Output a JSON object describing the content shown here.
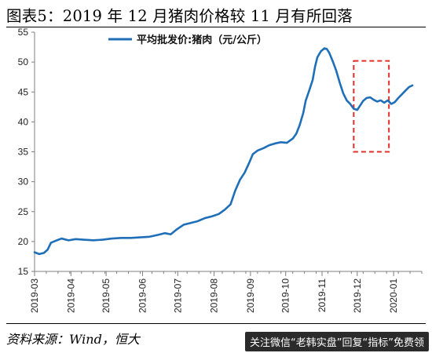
{
  "title": "图表5：2019 年 12 月猪肉价格较 11 月有所回落",
  "source": "资料来源：Wind，恒大",
  "watermark": "关注微信“老韩实盘”回复“指标”免费领",
  "colors": {
    "line": "#1f6fb8",
    "highlight": "#e0302a",
    "axis": "#7f7f7f"
  },
  "chart_data": {
    "type": "line",
    "title": "",
    "xlabel": "",
    "ylabel": "",
    "ylim": [
      15,
      55
    ],
    "yticks": [
      15,
      20,
      25,
      30,
      35,
      40,
      45,
      50,
      55
    ],
    "xlim": [
      "2019-03-01",
      "2020-01-25"
    ],
    "xticks": [
      "2019-03",
      "2019-04",
      "2019-05",
      "2019-06",
      "2019-07",
      "2019-08",
      "2019-09",
      "2019-10",
      "2019-11",
      "2019-12",
      "2020-01"
    ],
    "grid": false,
    "legend": "top-center",
    "series": [
      {
        "name": "平均批发价:猪肉（元/公斤）",
        "points": [
          [
            "2019-03-01",
            18.2
          ],
          [
            "2019-03-05",
            17.9
          ],
          [
            "2019-03-09",
            18.1
          ],
          [
            "2019-03-12",
            18.6
          ],
          [
            "2019-03-15",
            19.8
          ],
          [
            "2019-03-20",
            20.2
          ],
          [
            "2019-03-24",
            20.5
          ],
          [
            "2019-03-30",
            20.2
          ],
          [
            "2019-04-05",
            20.4
          ],
          [
            "2019-04-12",
            20.3
          ],
          [
            "2019-04-20",
            20.2
          ],
          [
            "2019-04-28",
            20.3
          ],
          [
            "2019-05-06",
            20.5
          ],
          [
            "2019-05-14",
            20.6
          ],
          [
            "2019-05-22",
            20.6
          ],
          [
            "2019-05-30",
            20.7
          ],
          [
            "2019-06-07",
            20.8
          ],
          [
            "2019-06-14",
            21.1
          ],
          [
            "2019-06-20",
            21.4
          ],
          [
            "2019-06-25",
            21.2
          ],
          [
            "2019-06-30",
            22.0
          ],
          [
            "2019-07-06",
            22.8
          ],
          [
            "2019-07-12",
            23.1
          ],
          [
            "2019-07-18",
            23.4
          ],
          [
            "2019-07-24",
            23.9
          ],
          [
            "2019-07-30",
            24.2
          ],
          [
            "2019-08-05",
            24.6
          ],
          [
            "2019-08-10",
            25.3
          ],
          [
            "2019-08-15",
            26.2
          ],
          [
            "2019-08-19",
            28.5
          ],
          [
            "2019-08-23",
            30.3
          ],
          [
            "2019-08-27",
            31.5
          ],
          [
            "2019-08-31",
            33.2
          ],
          [
            "2019-09-03",
            34.6
          ],
          [
            "2019-09-07",
            35.2
          ],
          [
            "2019-09-12",
            35.6
          ],
          [
            "2019-09-17",
            36.1
          ],
          [
            "2019-09-22",
            36.4
          ],
          [
            "2019-09-27",
            36.6
          ],
          [
            "2019-10-02",
            36.5
          ],
          [
            "2019-10-07",
            37.2
          ],
          [
            "2019-10-10",
            38.0
          ],
          [
            "2019-10-13",
            39.5
          ],
          [
            "2019-10-16",
            41.5
          ],
          [
            "2019-10-18",
            43.5
          ],
          [
            "2019-10-21",
            45.2
          ],
          [
            "2019-10-24",
            47.0
          ],
          [
            "2019-10-26",
            49.2
          ],
          [
            "2019-10-28",
            50.8
          ],
          [
            "2019-10-31",
            51.8
          ],
          [
            "2019-11-03",
            52.3
          ],
          [
            "2019-11-05",
            52.2
          ],
          [
            "2019-11-07",
            51.6
          ],
          [
            "2019-11-10",
            50.2
          ],
          [
            "2019-11-13",
            48.6
          ],
          [
            "2019-11-16",
            46.6
          ],
          [
            "2019-11-19",
            44.8
          ],
          [
            "2019-11-22",
            43.6
          ],
          [
            "2019-11-25",
            43.0
          ],
          [
            "2019-11-28",
            42.2
          ],
          [
            "2019-12-01",
            42.0
          ],
          [
            "2019-12-03",
            42.6
          ],
          [
            "2019-12-06",
            43.5
          ],
          [
            "2019-12-09",
            44.0
          ],
          [
            "2019-12-12",
            44.1
          ],
          [
            "2019-12-15",
            43.7
          ],
          [
            "2019-12-18",
            43.4
          ],
          [
            "2019-12-21",
            43.6
          ],
          [
            "2019-12-24",
            43.2
          ],
          [
            "2019-12-27",
            43.6
          ],
          [
            "2019-12-30",
            43.0
          ],
          [
            "2020-01-02",
            43.3
          ],
          [
            "2020-01-05",
            44.0
          ],
          [
            "2020-01-08",
            44.6
          ],
          [
            "2020-01-11",
            45.2
          ],
          [
            "2020-01-14",
            45.8
          ],
          [
            "2020-01-17",
            46.1
          ]
        ]
      }
    ],
    "annotations": [
      {
        "type": "dashed-box",
        "x_from": "2019-11-28",
        "x_to": "2019-12-28",
        "y_from": 35.0,
        "y_to": 50.2
      }
    ]
  }
}
